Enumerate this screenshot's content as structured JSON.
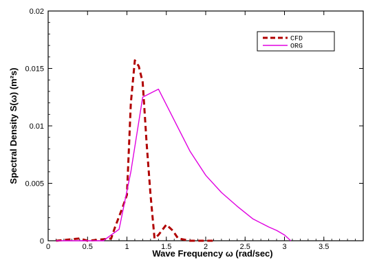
{
  "chart_data": {
    "type": "line",
    "title": "",
    "xlabel": "Wave Frequency ω (rad/sec)",
    "ylabel": "Spectral Density S(ω) (m²s)",
    "xlim": [
      0,
      4
    ],
    "ylim": [
      0,
      0.02
    ],
    "x_ticks": [
      0,
      0.5,
      1,
      1.5,
      2,
      2.5,
      3,
      3.5
    ],
    "x_tick_labels": [
      "0",
      "0.5",
      "1",
      "1.5",
      "2",
      "2.5",
      "3",
      "3.5"
    ],
    "y_ticks": [
      0,
      0.005,
      0.01,
      0.015,
      0.02
    ],
    "y_tick_labels": [
      "0",
      "0.005",
      "0.01",
      "0.015",
      "0.02"
    ],
    "legend_position": "top-right",
    "grid": false,
    "series": [
      {
        "name": "CFD",
        "color": "#b00000",
        "style": "dashed",
        "points": [
          [
            0.1,
            0
          ],
          [
            0.4,
            0.0002
          ],
          [
            0.5,
            0
          ],
          [
            0.8,
            0.0002
          ],
          [
            0.85,
            0.0012
          ],
          [
            0.95,
            0.003
          ],
          [
            1.0,
            0.004
          ],
          [
            1.05,
            0.012
          ],
          [
            1.1,
            0.0157
          ],
          [
            1.15,
            0.0152
          ],
          [
            1.2,
            0.0138
          ],
          [
            1.25,
            0.0085
          ],
          [
            1.3,
            0.004
          ],
          [
            1.35,
            0.0002
          ],
          [
            1.4,
            0.0005
          ],
          [
            1.5,
            0.0014
          ],
          [
            1.58,
            0.0009
          ],
          [
            1.65,
            0.0002
          ],
          [
            1.8,
            0
          ],
          [
            2.1,
            0
          ]
        ]
      },
      {
        "name": "ORG",
        "color": "#e000e0",
        "style": "solid",
        "points": [
          [
            0.1,
            0
          ],
          [
            0.5,
            0
          ],
          [
            0.7,
            0
          ],
          [
            0.9,
            0.001
          ],
          [
            1.05,
            0.006
          ],
          [
            1.2,
            0.0125
          ],
          [
            1.4,
            0.0132
          ],
          [
            1.6,
            0.0105
          ],
          [
            1.8,
            0.0078
          ],
          [
            2.0,
            0.0057
          ],
          [
            2.2,
            0.0042
          ],
          [
            2.4,
            0.003
          ],
          [
            2.6,
            0.0019
          ],
          [
            2.8,
            0.0012
          ],
          [
            2.9,
            0.0009
          ],
          [
            3.0,
            0.0005
          ],
          [
            3.08,
            0
          ]
        ]
      }
    ]
  }
}
